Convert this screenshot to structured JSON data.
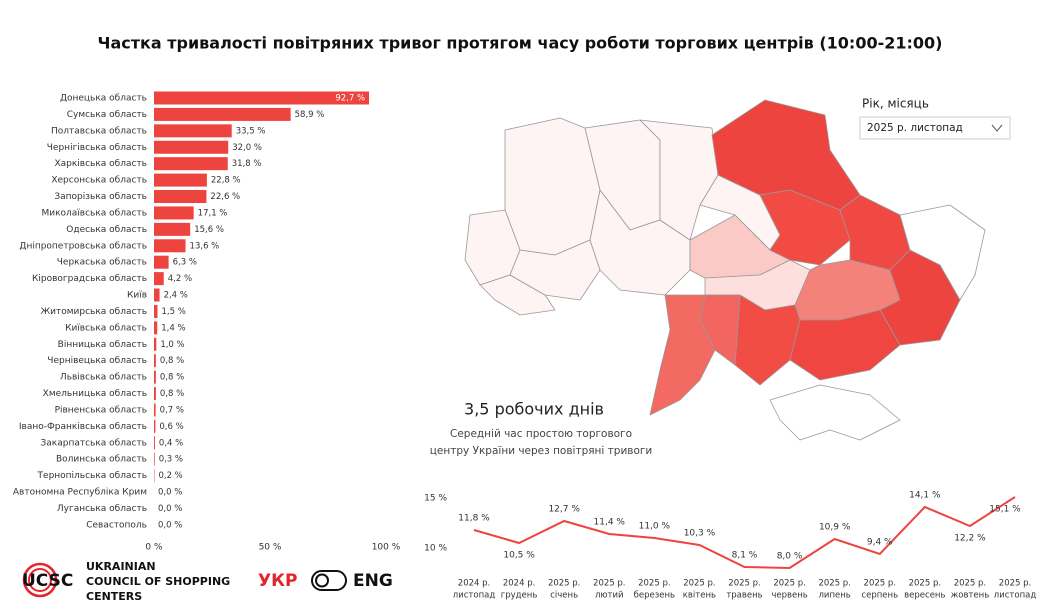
{
  "title": "Частка тривалості повітряних тривог протягом часу роботи торгових центрів (10:00-21:00)",
  "chart_data": [
    {
      "type": "bar",
      "orientation": "horizontal",
      "color": "#ee4440",
      "categories": [
        "Донецька область",
        "Сумська область",
        "Полтавська область",
        "Чернігівська область",
        "Харківська область",
        "Херсонська область",
        "Запорізька область",
        "Миколаївська область",
        "Одеська область",
        "Дніпропетровська область",
        "Черкаська область",
        "Кіровоградська область",
        "Київ",
        "Житомирська область",
        "Київська область",
        "Вінницька область",
        "Чернівецька область",
        "Львівська область",
        "Хмельницька область",
        "Рівненська область",
        "Івано-Франківська область",
        "Закарпатська область",
        "Волинська область",
        "Тернопільська область",
        "Автономна Республіка Крим",
        "Луганська область",
        "Севастополь"
      ],
      "values": [
        92.7,
        58.9,
        33.5,
        32.0,
        31.8,
        22.8,
        22.6,
        17.1,
        15.6,
        13.6,
        6.3,
        4.2,
        2.4,
        1.5,
        1.4,
        1.0,
        0.8,
        0.8,
        0.8,
        0.7,
        0.6,
        0.4,
        0.3,
        0.2,
        0.0,
        0.0,
        0.0
      ],
      "value_labels": [
        "92,7 %",
        "58,9 %",
        "33,5 %",
        "32,0 %",
        "31,8 %",
        "22,8 %",
        "22,6 %",
        "17,1 %",
        "15,6 %",
        "13,6 %",
        "6,3 %",
        "4,2 %",
        "2,4 %",
        "1,5 %",
        "1,4 %",
        "1,0 %",
        "0,8 %",
        "0,8 %",
        "0,8 %",
        "0,7 %",
        "0,6 %",
        "0,4 %",
        "0,3 %",
        "0,2 %",
        "0,0 %",
        "0,0 %",
        "0,0 %"
      ],
      "xlim": [
        0,
        100
      ],
      "xticks": [
        {
          "value": 0,
          "label": "0 %"
        },
        {
          "value": 50,
          "label": "50 %"
        },
        {
          "value": 100,
          "label": "100 %"
        }
      ]
    },
    {
      "type": "line",
      "color": "#ee4440",
      "categories": [
        [
          "2024 р.",
          "листопад"
        ],
        [
          "2024 р.",
          "грудень"
        ],
        [
          "2025 р.",
          "січень"
        ],
        [
          "2025 р.",
          "лютий"
        ],
        [
          "2025 р.",
          "березень"
        ],
        [
          "2025 р.",
          "квітень"
        ],
        [
          "2025 р.",
          "травень"
        ],
        [
          "2025 р.",
          "червень"
        ],
        [
          "2025 р.",
          "липень"
        ],
        [
          "2025 р.",
          "серпень"
        ],
        [
          "2025 р.",
          "вересень"
        ],
        [
          "2025 р.",
          "жовтень"
        ],
        [
          "2025 р.",
          "листопад"
        ]
      ],
      "values": [
        11.8,
        10.5,
        12.7,
        11.4,
        11.0,
        10.3,
        8.1,
        8.0,
        10.9,
        9.4,
        14.1,
        12.2,
        15.1
      ],
      "value_labels": [
        "11,8 %",
        "10,5 %",
        "12,7 %",
        "11,4 %",
        "11,0 %",
        "10,3 %",
        "8,1 %",
        "8,0 %",
        "10,9 %",
        "9,4 %",
        "14,1 %",
        "12,2 %",
        "15,1 %"
      ],
      "ylim": [
        7.5,
        15.5
      ],
      "yticks": [
        {
          "value": 10,
          "label": "10 %"
        },
        {
          "value": 15,
          "label": "15 %"
        }
      ]
    }
  ],
  "filter": {
    "label": "Рік, місяць",
    "selected": "2025 р. листопад"
  },
  "kpi": {
    "value": "3,5 робочих днів",
    "description": [
      "Середній час простою торгового",
      "центру України через повітряні тривоги"
    ]
  },
  "logo": {
    "mark": "UCSC",
    "name": [
      "UKRAINIAN",
      "COUNCIL OF SHOPPING",
      "CENTERS"
    ]
  },
  "language": {
    "ukr": "УКР",
    "eng": "ENG"
  }
}
